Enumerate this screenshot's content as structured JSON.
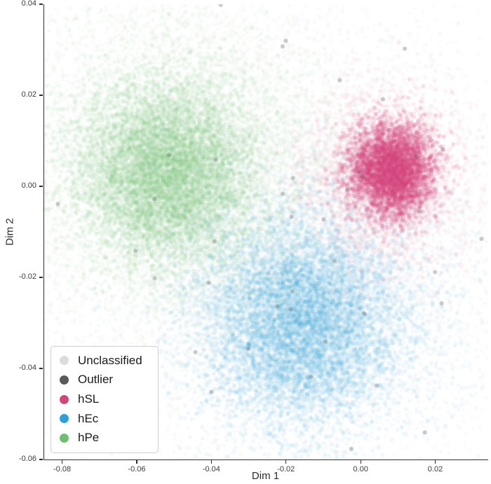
{
  "chart_data": {
    "type": "scatter",
    "title": "",
    "xlabel": "Dim 1",
    "ylabel": "Dim 2",
    "xlim": [
      -0.085,
      0.034
    ],
    "ylim": [
      -0.06,
      0.04
    ],
    "x_ticks": [
      -0.08,
      -0.06,
      -0.04,
      -0.02,
      0.0,
      0.02
    ],
    "x_tick_labels": [
      "-0.08",
      "-0.06",
      "-0.04",
      "-0.02",
      "0.00",
      "0.02"
    ],
    "y_ticks": [
      -0.06,
      -0.04,
      -0.02,
      0.0,
      0.02,
      0.04
    ],
    "y_tick_labels": [
      "-0.06",
      "-0.04",
      "-0.02",
      "0.00",
      "0.02",
      "0.04"
    ],
    "grid": false,
    "legend": {
      "position": "lower left",
      "entries": [
        {
          "label": "Unclassified",
          "color": "#dcdcdc"
        },
        {
          "label": "Outlier",
          "color": "#5a5a5a"
        },
        {
          "label": "hSL",
          "color": "#d2477a"
        },
        {
          "label": "hEc",
          "color": "#2f9fd6"
        },
        {
          "label": "hPe",
          "color": "#6fbf6f"
        }
      ]
    },
    "series": [
      {
        "name": "Unclassified",
        "color": "#c9c9c9",
        "cluster_center": [
          -0.025,
          -0.008
        ],
        "components": [
          {
            "count": 5200,
            "cx": -0.025,
            "cy": -0.008,
            "sx": 0.04,
            "sy": 0.031,
            "alpha": 0.05,
            "r": 3
          }
        ]
      },
      {
        "name": "hPe",
        "color": "#6fbf6f",
        "cluster_center": [
          -0.052,
          0.003
        ],
        "components": [
          {
            "count": 7500,
            "cx": -0.05,
            "cy": 0.005,
            "sx": 0.022,
            "sy": 0.018,
            "alpha": 0.04,
            "r": 3
          },
          {
            "count": 8000,
            "cx": -0.052,
            "cy": 0.003,
            "sx": 0.012,
            "sy": 0.01,
            "alpha": 0.08,
            "r": 3
          }
        ]
      },
      {
        "name": "hEc",
        "color": "#2f9fd6",
        "cluster_center": [
          -0.016,
          -0.03
        ],
        "components": [
          {
            "count": 4500,
            "cx": -0.012,
            "cy": -0.028,
            "sx": 0.021,
            "sy": 0.016,
            "alpha": 0.04,
            "r": 3
          },
          {
            "count": 7500,
            "cx": -0.016,
            "cy": -0.03,
            "sx": 0.013,
            "sy": 0.011,
            "alpha": 0.07,
            "r": 3
          }
        ]
      },
      {
        "name": "hSL",
        "color": "#d2477a",
        "cluster_center": [
          0.008,
          0.003
        ],
        "components": [
          {
            "count": 3000,
            "cx": 0.007,
            "cy": 0.002,
            "sx": 0.011,
            "sy": 0.01,
            "alpha": 0.05,
            "r": 3
          },
          {
            "count": 3800,
            "cx": 0.008,
            "cy": 0.0035,
            "sx": 0.0055,
            "sy": 0.005,
            "alpha": 0.16,
            "r": 3
          }
        ]
      },
      {
        "name": "Outlier",
        "color": "#4d4d4d",
        "cluster_center": [
          -0.02,
          -0.01
        ],
        "components": [
          {
            "count": 45,
            "cx": -0.02,
            "cy": -0.01,
            "sx": 0.035,
            "sy": 0.028,
            "alpha": 0.3,
            "r": 3
          }
        ]
      }
    ]
  },
  "figure": {
    "background": "#ffffff"
  }
}
